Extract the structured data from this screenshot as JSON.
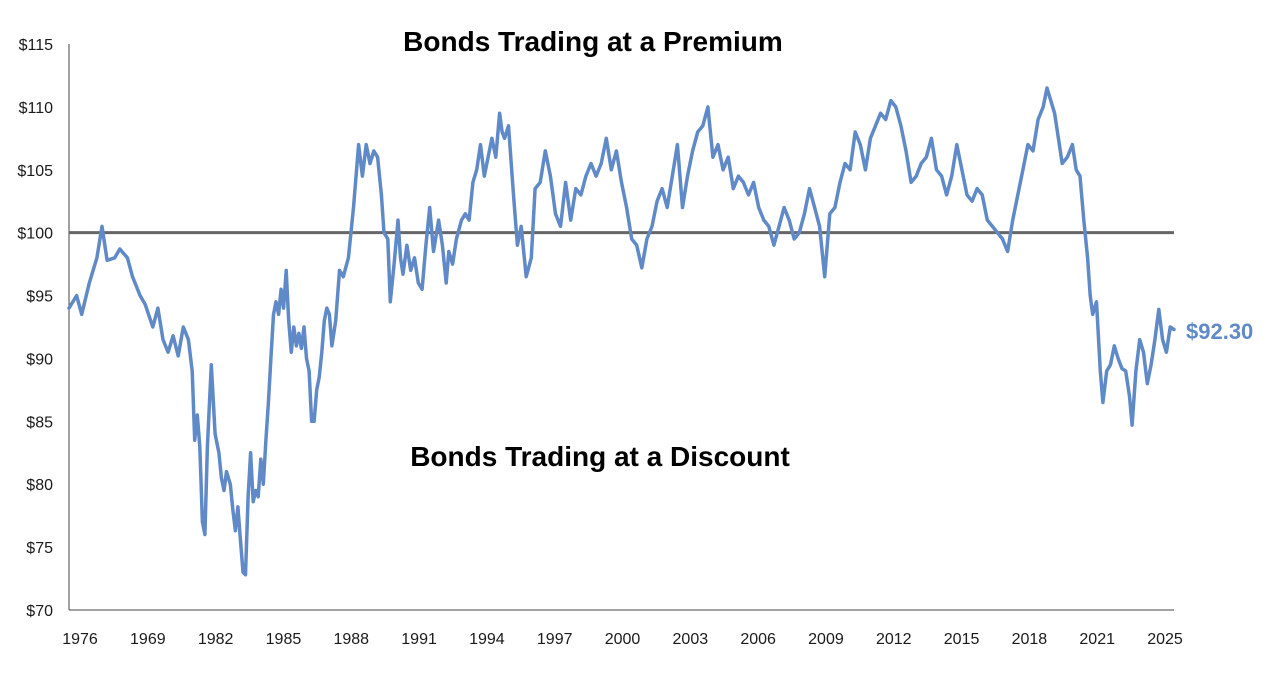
{
  "chart_data": {
    "type": "line",
    "title": "",
    "xlabel": "",
    "ylabel": "",
    "annotations": {
      "premium": "Bonds Trading at a Premium",
      "discount": "Bonds Trading at a Discount",
      "end_value": "$92.30"
    },
    "ylim": [
      70,
      115
    ],
    "y_ticks": [
      70,
      75,
      80,
      85,
      90,
      95,
      100,
      105,
      110,
      115
    ],
    "y_tick_labels": [
      "$70",
      "$75",
      "$80",
      "$85",
      "$90",
      "$95",
      "$100",
      "$105",
      "$110",
      "$115"
    ],
    "x_tick_labels": [
      "1976",
      "1969",
      "1982",
      "1985",
      "1988",
      "1991",
      "1994",
      "1997",
      "2000",
      "2003",
      "2006",
      "2009",
      "2012",
      "2015",
      "2018",
      "2021",
      "2025"
    ],
    "reference_line": {
      "value": 100
    },
    "grid": false,
    "legend": "none",
    "colors": {
      "series": "#5f8ac7",
      "reference": "#666666",
      "axis": "#444444"
    },
    "series": [
      {
        "points": [
          [
            0,
            94
          ],
          [
            0.3,
            95
          ],
          [
            0.5,
            93.5
          ],
          [
            0.8,
            96
          ],
          [
            1.1,
            98
          ],
          [
            1.3,
            100.5
          ],
          [
            1.5,
            97.8
          ],
          [
            1.8,
            98
          ],
          [
            2.0,
            98.7
          ],
          [
            2.3,
            98
          ],
          [
            2.5,
            96.5
          ],
          [
            2.8,
            95
          ],
          [
            3.0,
            94.3
          ],
          [
            3.3,
            92.5
          ],
          [
            3.5,
            94
          ],
          [
            3.7,
            91.5
          ],
          [
            3.9,
            90.5
          ],
          [
            4.1,
            91.8
          ],
          [
            4.3,
            90.2
          ],
          [
            4.5,
            92.5
          ],
          [
            4.7,
            91.5
          ],
          [
            4.85,
            89
          ],
          [
            4.95,
            83.5
          ],
          [
            5.05,
            85.5
          ],
          [
            5.15,
            83
          ],
          [
            5.25,
            77
          ],
          [
            5.35,
            76
          ],
          [
            5.45,
            83
          ],
          [
            5.6,
            89.5
          ],
          [
            5.75,
            84
          ],
          [
            5.9,
            82.5
          ],
          [
            6.0,
            80.5
          ],
          [
            6.1,
            79.5
          ],
          [
            6.2,
            81
          ],
          [
            6.35,
            80
          ],
          [
            6.45,
            78
          ],
          [
            6.55,
            76.3
          ],
          [
            6.65,
            78.2
          ],
          [
            6.75,
            75.5
          ],
          [
            6.85,
            73
          ],
          [
            6.95,
            72.8
          ],
          [
            7.05,
            79
          ],
          [
            7.15,
            82.5
          ],
          [
            7.25,
            78.6
          ],
          [
            7.35,
            79.5
          ],
          [
            7.45,
            79
          ],
          [
            7.55,
            82
          ],
          [
            7.65,
            80
          ],
          [
            7.75,
            83.5
          ],
          [
            7.85,
            86.5
          ],
          [
            7.95,
            90
          ],
          [
            8.05,
            93.5
          ],
          [
            8.15,
            94.5
          ],
          [
            8.25,
            93.5
          ],
          [
            8.35,
            95.5
          ],
          [
            8.45,
            94
          ],
          [
            8.55,
            97
          ],
          [
            8.65,
            93
          ],
          [
            8.75,
            90.5
          ],
          [
            8.85,
            92.5
          ],
          [
            8.95,
            91
          ],
          [
            9.05,
            92
          ],
          [
            9.15,
            90.8
          ],
          [
            9.25,
            92.5
          ],
          [
            9.35,
            90
          ],
          [
            9.45,
            89
          ],
          [
            9.55,
            85
          ],
          [
            9.65,
            85
          ],
          [
            9.75,
            87.5
          ],
          [
            9.85,
            88.5
          ],
          [
            9.95,
            90.5
          ],
          [
            10.05,
            93
          ],
          [
            10.15,
            94
          ],
          [
            10.25,
            93.5
          ],
          [
            10.35,
            91
          ],
          [
            10.5,
            93
          ],
          [
            10.65,
            97
          ],
          [
            10.8,
            96.5
          ],
          [
            11.0,
            98
          ],
          [
            11.2,
            102
          ],
          [
            11.4,
            107
          ],
          [
            11.55,
            104.5
          ],
          [
            11.7,
            107
          ],
          [
            11.85,
            105.5
          ],
          [
            12.0,
            106.5
          ],
          [
            12.15,
            106
          ],
          [
            12.3,
            103
          ],
          [
            12.4,
            100
          ],
          [
            12.55,
            99.5
          ],
          [
            12.65,
            94.5
          ],
          [
            12.8,
            97.5
          ],
          [
            12.95,
            101
          ],
          [
            13.05,
            98
          ],
          [
            13.15,
            96.7
          ],
          [
            13.3,
            99
          ],
          [
            13.45,
            97
          ],
          [
            13.6,
            98
          ],
          [
            13.75,
            96
          ],
          [
            13.9,
            95.5
          ],
          [
            14.05,
            99
          ],
          [
            14.2,
            102
          ],
          [
            14.35,
            98.5
          ],
          [
            14.55,
            101
          ],
          [
            14.7,
            99
          ],
          [
            14.85,
            96
          ],
          [
            14.95,
            98.5
          ],
          [
            15.1,
            97.5
          ],
          [
            15.25,
            99.5
          ],
          [
            15.45,
            101
          ],
          [
            15.6,
            101.5
          ],
          [
            15.75,
            101
          ],
          [
            15.9,
            104
          ],
          [
            16.05,
            105
          ],
          [
            16.2,
            107
          ],
          [
            16.35,
            104.5
          ],
          [
            16.5,
            106
          ],
          [
            16.65,
            107.5
          ],
          [
            16.8,
            106
          ],
          [
            16.95,
            109.5
          ],
          [
            17.05,
            108
          ],
          [
            17.15,
            107.5
          ],
          [
            17.3,
            108.5
          ],
          [
            17.5,
            103
          ],
          [
            17.65,
            99
          ],
          [
            17.8,
            100.5
          ],
          [
            18.0,
            96.5
          ],
          [
            18.2,
            98
          ],
          [
            18.35,
            103.5
          ],
          [
            18.55,
            104
          ],
          [
            18.75,
            106.5
          ],
          [
            18.95,
            104.5
          ],
          [
            19.15,
            101.5
          ],
          [
            19.35,
            100.5
          ],
          [
            19.55,
            104
          ],
          [
            19.75,
            101
          ],
          [
            19.95,
            103.5
          ],
          [
            20.15,
            103
          ],
          [
            20.35,
            104.5
          ],
          [
            20.55,
            105.5
          ],
          [
            20.75,
            104.5
          ],
          [
            20.95,
            105.5
          ],
          [
            21.15,
            107.5
          ],
          [
            21.35,
            105
          ],
          [
            21.55,
            106.5
          ],
          [
            21.75,
            104
          ],
          [
            21.95,
            102
          ],
          [
            22.15,
            99.5
          ],
          [
            22.35,
            99
          ],
          [
            22.55,
            97.2
          ],
          [
            22.75,
            99.5
          ],
          [
            22.95,
            100.5
          ],
          [
            23.15,
            102.5
          ],
          [
            23.35,
            103.5
          ],
          [
            23.55,
            102
          ],
          [
            23.75,
            104.5
          ],
          [
            23.95,
            107
          ],
          [
            24.15,
            102
          ],
          [
            24.35,
            104.5
          ],
          [
            24.55,
            106.5
          ],
          [
            24.75,
            108
          ],
          [
            24.95,
            108.5
          ],
          [
            25.15,
            110
          ],
          [
            25.35,
            106
          ],
          [
            25.55,
            107
          ],
          [
            25.75,
            105
          ],
          [
            25.95,
            106
          ],
          [
            26.15,
            103.5
          ],
          [
            26.35,
            104.5
          ],
          [
            26.55,
            104
          ],
          [
            26.75,
            103
          ],
          [
            26.95,
            104
          ],
          [
            27.15,
            102
          ],
          [
            27.35,
            101
          ],
          [
            27.55,
            100.5
          ],
          [
            27.75,
            99
          ],
          [
            27.95,
            100.5
          ],
          [
            28.15,
            102
          ],
          [
            28.35,
            101
          ],
          [
            28.55,
            99.5
          ],
          [
            28.75,
            100
          ],
          [
            28.95,
            101.5
          ],
          [
            29.15,
            103.5
          ],
          [
            29.35,
            102
          ],
          [
            29.55,
            100.5
          ],
          [
            29.75,
            96.5
          ],
          [
            29.95,
            101.5
          ],
          [
            30.15,
            102
          ],
          [
            30.35,
            104
          ],
          [
            30.55,
            105.5
          ],
          [
            30.75,
            105
          ],
          [
            30.95,
            108
          ],
          [
            31.15,
            107
          ],
          [
            31.35,
            105
          ],
          [
            31.55,
            107.5
          ],
          [
            31.75,
            108.5
          ],
          [
            31.95,
            109.5
          ],
          [
            32.15,
            109
          ],
          [
            32.35,
            110.5
          ],
          [
            32.55,
            110
          ],
          [
            32.75,
            108.5
          ],
          [
            32.95,
            106.5
          ],
          [
            33.15,
            104
          ],
          [
            33.35,
            104.5
          ],
          [
            33.55,
            105.5
          ],
          [
            33.75,
            106
          ],
          [
            33.95,
            107.5
          ],
          [
            34.15,
            105
          ],
          [
            34.35,
            104.5
          ],
          [
            34.55,
            103
          ],
          [
            34.75,
            104.5
          ],
          [
            34.95,
            107
          ],
          [
            35.15,
            105
          ],
          [
            35.35,
            103
          ],
          [
            35.55,
            102.5
          ],
          [
            35.75,
            103.5
          ],
          [
            35.95,
            103
          ],
          [
            36.15,
            101
          ],
          [
            36.35,
            100.5
          ],
          [
            36.55,
            100
          ],
          [
            36.75,
            99.5
          ],
          [
            36.95,
            98.5
          ],
          [
            37.15,
            101
          ],
          [
            37.35,
            103
          ],
          [
            37.55,
            105
          ],
          [
            37.75,
            107
          ],
          [
            37.95,
            106.5
          ],
          [
            38.15,
            109
          ],
          [
            38.35,
            110
          ],
          [
            38.5,
            111.5
          ],
          [
            38.65,
            110.5
          ],
          [
            38.8,
            109.5
          ],
          [
            38.95,
            107.5
          ],
          [
            39.1,
            105.5
          ],
          [
            39.3,
            106
          ],
          [
            39.5,
            107
          ],
          [
            39.65,
            105
          ],
          [
            39.8,
            104.5
          ],
          [
            39.95,
            101
          ],
          [
            40.1,
            98
          ],
          [
            40.2,
            95
          ],
          [
            40.3,
            93.5
          ],
          [
            40.45,
            94.5
          ],
          [
            40.6,
            89
          ],
          [
            40.7,
            86.5
          ],
          [
            40.85,
            89
          ],
          [
            41.0,
            89.5
          ],
          [
            41.15,
            91
          ],
          [
            41.3,
            90
          ],
          [
            41.45,
            89.2
          ],
          [
            41.6,
            89
          ],
          [
            41.75,
            87
          ],
          [
            41.85,
            84.7
          ],
          [
            42.0,
            89
          ],
          [
            42.15,
            91.5
          ],
          [
            42.3,
            90.5
          ],
          [
            42.45,
            88
          ],
          [
            42.6,
            89.5
          ],
          [
            42.75,
            91.5
          ],
          [
            42.9,
            93.9
          ],
          [
            43.05,
            91.5
          ],
          [
            43.2,
            90.5
          ],
          [
            43.35,
            92.5
          ],
          [
            43.5,
            92.3
          ]
        ]
      }
    ],
    "x_range": [
      0,
      43.5
    ]
  }
}
